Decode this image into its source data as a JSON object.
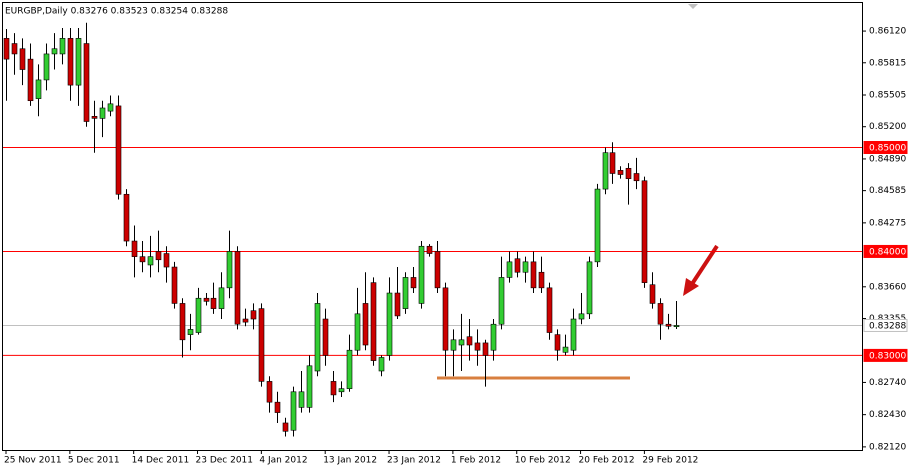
{
  "chart_data": {
    "type": "candlestick",
    "title": "EURGBP,Daily 0.83276 0.83523 0.83254 0.83288",
    "categories": [
      "25 Nov 2011",
      null,
      null,
      null,
      null,
      null,
      null,
      null,
      "5 Dec 2011",
      null,
      null,
      null,
      null,
      null,
      null,
      null,
      "14 Dec 2011",
      null,
      null,
      null,
      null,
      null,
      null,
      null,
      "23 Dec 2011",
      null,
      null,
      null,
      null,
      null,
      null,
      null,
      "4 Jan 2012",
      null,
      null,
      null,
      null,
      null,
      null,
      null,
      "13 Jan 2012",
      null,
      null,
      null,
      null,
      null,
      null,
      null,
      "23 Jan 2012",
      null,
      null,
      null,
      null,
      null,
      null,
      null,
      "1 Feb 2012",
      null,
      null,
      null,
      null,
      null,
      null,
      null,
      "10 Feb 2012",
      null,
      null,
      null,
      null,
      null,
      null,
      null,
      "20 Feb 2012",
      null,
      null,
      null,
      null,
      null,
      null,
      null,
      "29 Feb 2012",
      null,
      null,
      null,
      null
    ],
    "open": [
      0.8605,
      0.86,
      0.8595,
      0.8585,
      0.8547,
      0.8565,
      0.859,
      0.859,
      0.8605,
      0.856,
      0.86,
      0.853,
      0.8528,
      0.8535,
      0.854,
      0.8455,
      0.841,
      0.8395,
      0.8387,
      0.84,
      0.8398,
      0.8385,
      0.835,
      0.832,
      0.8322,
      0.8355,
      0.8355,
      0.8345,
      0.8365,
      0.84,
      0.8335,
      0.8343,
      0.8345,
      0.8275,
      0.8255,
      0.8235,
      0.8228,
      0.825,
      0.825,
      0.8285,
      0.8335,
      0.8275,
      0.8265,
      0.8268,
      0.8305,
      0.835,
      0.837,
      0.8285,
      0.83,
      0.836,
      0.8345,
      0.8375,
      0.835,
      0.8405,
      0.84,
      0.8365,
      0.8305,
      0.831,
      0.8318,
      0.8312,
      0.8312,
      0.8305,
      0.833,
      0.8375,
      0.8393,
      0.838,
      0.839,
      0.838,
      0.8365,
      0.832,
      0.8303,
      0.8305,
      0.8335,
      0.834,
      0.839,
      0.846,
      0.8495,
      0.8478,
      0.848,
      0.8475,
      0.8468,
      0.8368,
      0.835,
      0.833,
      0.83276
    ],
    "high": [
      0.8614,
      0.861,
      0.8605,
      0.86,
      0.858,
      0.86,
      0.861,
      0.8615,
      0.8615,
      0.8615,
      0.862,
      0.8545,
      0.8545,
      0.855,
      0.855,
      0.846,
      0.8425,
      0.841,
      0.8415,
      0.842,
      0.8405,
      0.839,
      0.8355,
      0.834,
      0.8365,
      0.836,
      0.837,
      0.838,
      0.842,
      0.8405,
      0.8345,
      0.835,
      0.835,
      0.828,
      0.8265,
      0.824,
      0.827,
      0.8285,
      0.83,
      0.836,
      0.8345,
      0.8285,
      0.8275,
      0.832,
      0.8365,
      0.838,
      0.8375,
      0.83,
      0.8375,
      0.8385,
      0.838,
      0.8385,
      0.841,
      0.8407,
      0.841,
      0.837,
      0.8325,
      0.834,
      0.8335,
      0.8325,
      0.8315,
      0.8335,
      0.8395,
      0.84,
      0.84,
      0.8395,
      0.84,
      0.8395,
      0.837,
      0.8325,
      0.832,
      0.8345,
      0.836,
      0.8395,
      0.8465,
      0.85,
      0.8505,
      0.8482,
      0.8485,
      0.849,
      0.8472,
      0.838,
      0.8355,
      0.834,
      0.83523
    ],
    "low": [
      0.8545,
      0.857,
      0.856,
      0.854,
      0.853,
      0.8555,
      0.8575,
      0.858,
      0.8545,
      0.854,
      0.852,
      0.8495,
      0.851,
      0.853,
      0.845,
      0.8405,
      0.8375,
      0.838,
      0.8375,
      0.838,
      0.837,
      0.8345,
      0.8298,
      0.8305,
      0.832,
      0.8348,
      0.834,
      0.8335,
      0.8355,
      0.8325,
      0.8328,
      0.8325,
      0.827,
      0.8245,
      0.8235,
      0.8222,
      0.8222,
      0.8245,
      0.8245,
      0.828,
      0.829,
      0.8255,
      0.826,
      0.8265,
      0.83,
      0.8305,
      0.829,
      0.828,
      0.8295,
      0.8335,
      0.834,
      0.836,
      0.8345,
      0.8395,
      0.836,
      0.828,
      0.828,
      0.8285,
      0.8295,
      0.829,
      0.827,
      0.8295,
      0.8325,
      0.837,
      0.8375,
      0.837,
      0.836,
      0.836,
      0.8315,
      0.8295,
      0.83,
      0.83,
      0.833,
      0.8335,
      0.8385,
      0.8455,
      0.8465,
      0.847,
      0.8445,
      0.846,
      0.8365,
      0.8345,
      0.8315,
      0.8325,
      0.83254
    ],
    "close": [
      0.8585,
      0.859,
      0.8575,
      0.8545,
      0.8565,
      0.859,
      0.8595,
      0.8605,
      0.856,
      0.8605,
      0.8525,
      0.8528,
      0.8538,
      0.8542,
      0.8455,
      0.841,
      0.8395,
      0.839,
      0.8395,
      0.8392,
      0.8385,
      0.835,
      0.8315,
      0.8325,
      0.8355,
      0.8352,
      0.8345,
      0.8365,
      0.84,
      0.833,
      0.8332,
      0.8335,
      0.8275,
      0.8255,
      0.8245,
      0.8227,
      0.8265,
      0.8265,
      0.829,
      0.835,
      0.83,
      0.8262,
      0.8268,
      0.8305,
      0.834,
      0.831,
      0.8295,
      0.8298,
      0.836,
      0.8338,
      0.8375,
      0.8365,
      0.8405,
      0.8398,
      0.8365,
      0.8305,
      0.8315,
      0.8315,
      0.831,
      0.8305,
      0.83,
      0.833,
      0.8375,
      0.839,
      0.838,
      0.839,
      0.8365,
      0.8365,
      0.8322,
      0.8305,
      0.8308,
      0.8335,
      0.834,
      0.839,
      0.846,
      0.8495,
      0.8475,
      0.8474,
      0.847,
      0.8468,
      0.837,
      0.835,
      0.833,
      0.8328,
      0.83288
    ],
    "up_color": "#32cd32",
    "down_color": "#cc0000",
    "ylim": [
      0.8209,
      0.8639
    ],
    "yticks": [
      {
        "value": 0.8612,
        "label": "0.86120"
      },
      {
        "value": 0.85815,
        "label": "0.85815"
      },
      {
        "value": 0.85505,
        "label": "0.85505"
      },
      {
        "value": 0.852,
        "label": "0.85200"
      },
      {
        "value": 0.8489,
        "label": "0.84890"
      },
      {
        "value": 0.84585,
        "label": "0.84585"
      },
      {
        "value": 0.84275,
        "label": "0.84275"
      },
      {
        "value": 0.8366,
        "label": "0.83660"
      },
      {
        "value": 0.83355,
        "label": "0.83355"
      },
      {
        "value": 0.8274,
        "label": "0.82740"
      },
      {
        "value": 0.8243,
        "label": "0.82430"
      },
      {
        "value": 0.8212,
        "label": "0.82120"
      }
    ],
    "hlines": [
      {
        "value": 0.85,
        "label": "0.85000",
        "color": "#ff0000"
      },
      {
        "value": 0.84,
        "label": "0.84000",
        "color": "#ff0000"
      },
      {
        "value": 0.83,
        "label": "0.83000",
        "color": "#ff0000"
      }
    ],
    "price_line": {
      "value": 0.83288,
      "label": "0.83288",
      "color": "#c0c0c0"
    }
  }
}
